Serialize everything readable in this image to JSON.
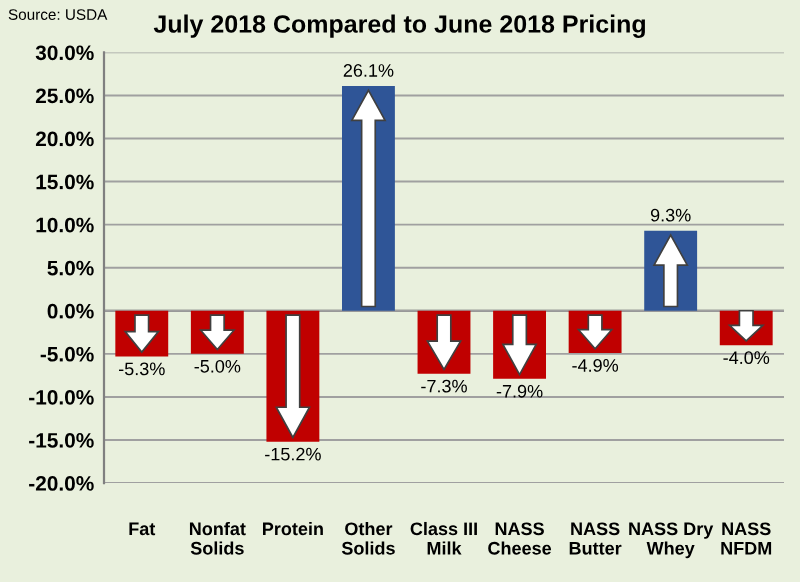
{
  "chart_data": {
    "type": "bar",
    "title": "July 2018 Compared to June 2018 Pricing",
    "annotations": [
      "Source: USDA"
    ],
    "categories": [
      "Fat",
      "Nonfat\nSolids",
      "Protein",
      "Other\nSolids",
      "Class III\nMilk",
      "NASS\nCheese",
      "NASS\nButter",
      "NASS Dry\nWhey",
      "NASS\nNFDM"
    ],
    "values": [
      -5.3,
      -5.0,
      -15.2,
      26.1,
      -7.3,
      -7.9,
      -4.9,
      9.3,
      -4.0
    ],
    "colors": [
      "#c00000",
      "#c00000",
      "#c00000",
      "#2f5597",
      "#c00000",
      "#c00000",
      "#c00000",
      "#2f5597",
      "#c00000"
    ],
    "value_labels": [
      "-5.3%",
      "-5.0%",
      "-15.2%",
      "26.1%",
      "-7.3%",
      "-7.9%",
      "-4.9%",
      "9.3%",
      "-4.0%"
    ],
    "ylim": [
      -20,
      30
    ],
    "yticks": [
      {
        "value": -20,
        "label": "-20.0%"
      },
      {
        "value": -15,
        "label": "-15.0%"
      },
      {
        "value": -10,
        "label": "-10.0%"
      },
      {
        "value": -5,
        "label": "-5.0%"
      },
      {
        "value": 0,
        "label": "0.0%"
      },
      {
        "value": 5,
        "label": "5.0%"
      },
      {
        "value": 10,
        "label": "10.0%"
      },
      {
        "value": 15,
        "label": "15.0%"
      },
      {
        "value": 20,
        "label": "20.0%"
      },
      {
        "value": 25,
        "label": "25.0%"
      },
      {
        "value": 30,
        "label": "30.0%"
      }
    ],
    "grid": "y",
    "legend": false
  }
}
